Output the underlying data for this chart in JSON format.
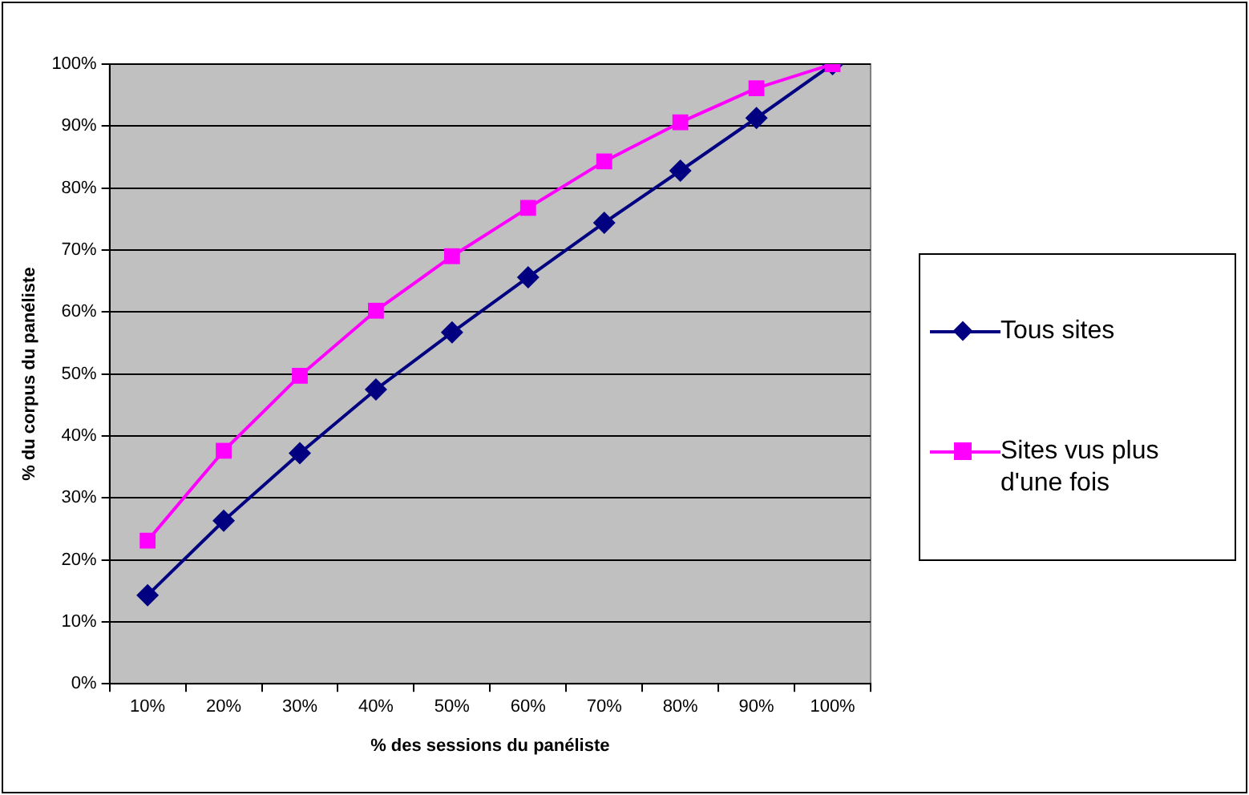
{
  "chart_data": {
    "type": "line",
    "xlabel": "% des sessions du panéliste",
    "ylabel": "% du corpus du panéliste",
    "categories": [
      "10%",
      "20%",
      "30%",
      "40%",
      "50%",
      "60%",
      "70%",
      "80%",
      "90%",
      "100%"
    ],
    "ylim": [
      0,
      100
    ],
    "yticks": [
      {
        "value": 0,
        "label": "0%"
      },
      {
        "value": 10,
        "label": "10%"
      },
      {
        "value": 20,
        "label": "20%"
      },
      {
        "value": 30,
        "label": "30%"
      },
      {
        "value": 40,
        "label": "40%"
      },
      {
        "value": 50,
        "label": "50%"
      },
      {
        "value": 60,
        "label": "60%"
      },
      {
        "value": 70,
        "label": "70%"
      },
      {
        "value": 80,
        "label": "80%"
      },
      {
        "value": 90,
        "label": "90%"
      },
      {
        "value": 100,
        "label": "100%"
      }
    ],
    "grid": "y",
    "legend": "right",
    "line_style": "solid",
    "series": [
      {
        "name": "Tous sites",
        "color": "#000080",
        "marker": "diamond",
        "values": [
          14.3,
          26.3,
          37.2,
          47.5,
          56.7,
          65.6,
          74.4,
          82.8,
          91.3,
          100
        ]
      },
      {
        "name": "Sites vus plus d'une fois",
        "color": "#ff00ff",
        "marker": "square",
        "values": [
          23.1,
          37.6,
          49.7,
          60.2,
          69,
          76.8,
          84.3,
          90.6,
          96.1,
          100
        ]
      }
    ]
  }
}
